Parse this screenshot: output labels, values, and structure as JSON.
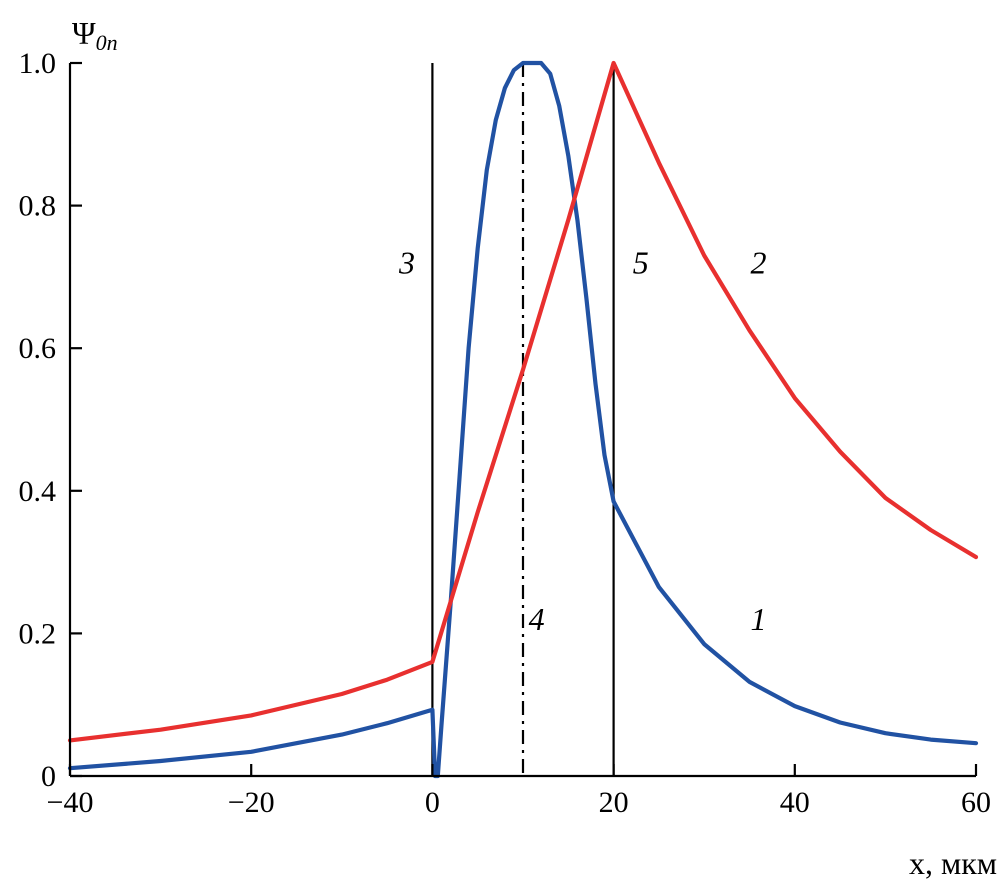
{
  "chart_data": {
    "type": "line",
    "xlabel": "x, мкм",
    "ylabel": "Ψ0n",
    "ylabel_main": "Ψ",
    "ylabel_sub": "0n",
    "xlim": [
      -40,
      60
    ],
    "ylim": [
      0,
      1.0
    ],
    "xticks": [
      -40,
      -20,
      0,
      20,
      40,
      60
    ],
    "xtick_labels": [
      "−40",
      "−20",
      "0",
      "20",
      "40",
      "60"
    ],
    "yticks": [
      0,
      0.2,
      0.4,
      0.6,
      0.8,
      1.0
    ],
    "ytick_labels": [
      "0",
      "0.2",
      "0.4",
      "0.6",
      "0.8",
      "1.0"
    ],
    "grid": false,
    "colors": {
      "series_1": "#2152a3",
      "series_2": "#e8302f",
      "markers": "#000000"
    },
    "series": [
      {
        "label": "1",
        "color": "#2152a3",
        "points": [
          [
            -40,
            0.011
          ],
          [
            -30,
            0.021
          ],
          [
            -20,
            0.034
          ],
          [
            -10,
            0.058
          ],
          [
            -5,
            0.074
          ],
          [
            0,
            0.093
          ],
          [
            0.3,
            0.0
          ],
          [
            0.6,
            0.0
          ],
          [
            1,
            0.072
          ],
          [
            2,
            0.24
          ],
          [
            3,
            0.42
          ],
          [
            4,
            0.6
          ],
          [
            5,
            0.74
          ],
          [
            6,
            0.85
          ],
          [
            7,
            0.92
          ],
          [
            8,
            0.965
          ],
          [
            9,
            0.99
          ],
          [
            10,
            1.0
          ],
          [
            11,
            1.0
          ],
          [
            12,
            1.0
          ],
          [
            13,
            0.985
          ],
          [
            14,
            0.94
          ],
          [
            15,
            0.87
          ],
          [
            16,
            0.78
          ],
          [
            17,
            0.67
          ],
          [
            18,
            0.55
          ],
          [
            19,
            0.45
          ],
          [
            20,
            0.385
          ],
          [
            25,
            0.265
          ],
          [
            30,
            0.185
          ],
          [
            35,
            0.132
          ],
          [
            40,
            0.098
          ],
          [
            45,
            0.075
          ],
          [
            50,
            0.06
          ],
          [
            55,
            0.051
          ],
          [
            60,
            0.046
          ]
        ],
        "text_label_at": [
          36,
          0.205
        ]
      },
      {
        "label": "2",
        "color": "#e8302f",
        "points": [
          [
            -40,
            0.05
          ],
          [
            -30,
            0.065
          ],
          [
            -20,
            0.085
          ],
          [
            -10,
            0.115
          ],
          [
            -5,
            0.135
          ],
          [
            0,
            0.16
          ],
          [
            5,
            0.37
          ],
          [
            10,
            0.57
          ],
          [
            15,
            0.78
          ],
          [
            20,
            1.0
          ],
          [
            25,
            0.86
          ],
          [
            30,
            0.73
          ],
          [
            35,
            0.625
          ],
          [
            40,
            0.53
          ],
          [
            45,
            0.455
          ],
          [
            50,
            0.39
          ],
          [
            55,
            0.345
          ],
          [
            60,
            0.307
          ]
        ],
        "text_label_at": [
          36,
          0.705
        ]
      }
    ],
    "vertical_markers": [
      {
        "label": "3",
        "x": 0,
        "style": "solid",
        "text_label_at": [
          -2.8,
          0.705
        ]
      },
      {
        "label": "4",
        "x": 10,
        "style": "dashdot",
        "text_label_at": [
          11.5,
          0.205
        ]
      },
      {
        "label": "5",
        "x": 20,
        "style": "solid",
        "text_label_at": [
          23,
          0.705
        ]
      }
    ]
  }
}
